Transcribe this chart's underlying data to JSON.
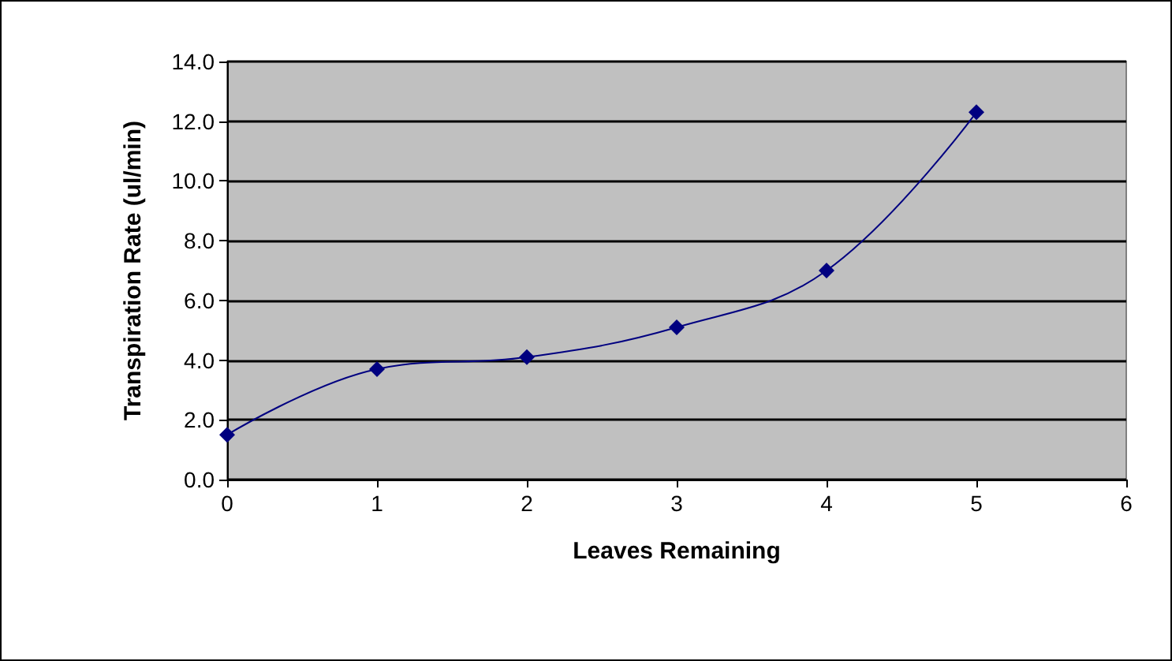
{
  "chart_data": {
    "type": "line",
    "xlabel": "Leaves Remaining",
    "ylabel": "Transpiration Rate (ul/min)",
    "x": [
      0,
      1,
      2,
      3,
      4,
      5
    ],
    "series": [
      {
        "color": "#000080",
        "values": [
          1.5,
          3.7,
          4.1,
          5.1,
          7.0,
          12.3
        ]
      }
    ],
    "xlim": [
      0,
      6
    ],
    "xticks": [
      0,
      1,
      2,
      3,
      4,
      5,
      6
    ],
    "ylim": [
      0,
      14
    ],
    "yticks": [
      {
        "value": 0,
        "label": "0.0"
      },
      {
        "value": 2,
        "label": "2.0"
      },
      {
        "value": 4,
        "label": "4.0"
      },
      {
        "value": 6,
        "label": "6.0"
      },
      {
        "value": 8,
        "label": "8.0"
      },
      {
        "value": 10,
        "label": "10.0"
      },
      {
        "value": 12,
        "label": "12.0"
      },
      {
        "value": 14,
        "label": "14.0"
      }
    ],
    "grid": "y",
    "marker": "diamond",
    "line_style": "solid"
  }
}
